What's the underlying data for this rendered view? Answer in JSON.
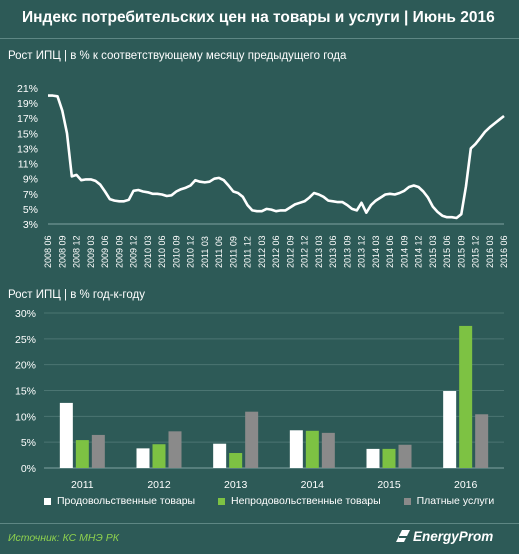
{
  "header": {
    "title": "Индекс потребительских цен на товары и услуги | Июнь 2016"
  },
  "colors": {
    "background": "#2d5a57",
    "line": "#ffffff",
    "food": "#ffffff",
    "nonfood": "#7dc243",
    "services": "#8a8a8a",
    "source": "#8fd24e"
  },
  "chart_data": [
    {
      "type": "line",
      "title": "Рост ИПЦ | в % к соответствующему месяцу предыдущего года",
      "y_ticks": [
        "21%",
        "19%",
        "17%",
        "15%",
        "13%",
        "11%",
        "9%",
        "7%",
        "5%",
        "3%"
      ],
      "ylim": [
        3,
        21
      ],
      "x_ticks": [
        "2008 06",
        "2008 09",
        "2008 12",
        "2009 03",
        "2009 06",
        "2009 09",
        "2009 12",
        "2010 03",
        "2010 06",
        "2010 09",
        "2010 12",
        "2011 03",
        "2011 06",
        "2011 09",
        "2011 12",
        "2012 03",
        "2012 06",
        "2012 09",
        "2012 12",
        "2013 03",
        "2013 06",
        "2013 09",
        "2013 12",
        "2014 03",
        "2014 06",
        "2014 09",
        "2014 12",
        "2015 03",
        "2015 06",
        "2015 09",
        "2015 12",
        "2016 03",
        "2016 06"
      ],
      "x": [
        "2008-06",
        "2008-07",
        "2008-08",
        "2008-09",
        "2008-10",
        "2008-11",
        "2008-12",
        "2009-01",
        "2009-02",
        "2009-03",
        "2009-04",
        "2009-05",
        "2009-06",
        "2009-07",
        "2009-08",
        "2009-09",
        "2009-10",
        "2009-11",
        "2009-12",
        "2010-01",
        "2010-02",
        "2010-03",
        "2010-04",
        "2010-05",
        "2010-06",
        "2010-07",
        "2010-08",
        "2010-09",
        "2010-10",
        "2010-11",
        "2010-12",
        "2011-01",
        "2011-02",
        "2011-03",
        "2011-04",
        "2011-05",
        "2011-06",
        "2011-07",
        "2011-08",
        "2011-09",
        "2011-10",
        "2011-11",
        "2011-12",
        "2012-01",
        "2012-02",
        "2012-03",
        "2012-04",
        "2012-05",
        "2012-06",
        "2012-07",
        "2012-08",
        "2012-09",
        "2012-10",
        "2012-11",
        "2012-12",
        "2013-01",
        "2013-02",
        "2013-03",
        "2013-04",
        "2013-05",
        "2013-06",
        "2013-07",
        "2013-08",
        "2013-09",
        "2013-10",
        "2013-11",
        "2013-12",
        "2014-01",
        "2014-02",
        "2014-03",
        "2014-04",
        "2014-05",
        "2014-06",
        "2014-07",
        "2014-08",
        "2014-09",
        "2014-10",
        "2014-11",
        "2014-12",
        "2015-01",
        "2015-02",
        "2015-03",
        "2015-04",
        "2015-05",
        "2015-06",
        "2015-07",
        "2015-08",
        "2015-09",
        "2015-10",
        "2015-11",
        "2015-12",
        "2016-01",
        "2016-02",
        "2016-03",
        "2016-04",
        "2016-05",
        "2016-06"
      ],
      "values": [
        20.0,
        20.0,
        19.9,
        18.0,
        15.0,
        9.3,
        9.5,
        8.8,
        8.9,
        8.9,
        8.7,
        8.2,
        7.3,
        6.3,
        6.1,
        6.0,
        6.0,
        6.2,
        7.4,
        7.5,
        7.3,
        7.2,
        7.0,
        7.0,
        6.9,
        6.7,
        6.8,
        7.3,
        7.6,
        7.8,
        8.1,
        8.8,
        8.6,
        8.5,
        8.6,
        9.0,
        9.1,
        8.8,
        8.1,
        7.3,
        7.1,
        6.6,
        5.5,
        4.8,
        4.7,
        4.7,
        5.0,
        4.9,
        4.7,
        4.8,
        4.8,
        5.2,
        5.6,
        5.8,
        6.0,
        6.5,
        7.1,
        6.9,
        6.6,
        6.1,
        6.0,
        5.9,
        5.9,
        5.5,
        5.0,
        4.8,
        5.8,
        4.5,
        5.5,
        6.1,
        6.5,
        6.9,
        7.0,
        6.9,
        7.1,
        7.4,
        7.9,
        8.1,
        7.9,
        7.3,
        6.5,
        5.3,
        4.6,
        4.1,
        3.9,
        3.9,
        3.8,
        4.3,
        8.0,
        13.0,
        13.6,
        14.4,
        15.2,
        15.8,
        16.3,
        16.8,
        17.3
      ]
    },
    {
      "type": "bar",
      "title": "Рост ИПЦ | в % год-к-году",
      "categories": [
        "2011",
        "2012",
        "2013",
        "2014",
        "2015",
        "2016"
      ],
      "y_ticks": [
        "30%",
        "25%",
        "20%",
        "15%",
        "10%",
        "5%",
        "0%"
      ],
      "ylim": [
        0,
        30
      ],
      "series": [
        {
          "name": "Продовольственные товары",
          "values": [
            12.6,
            3.8,
            4.7,
            7.3,
            3.7,
            14.9
          ]
        },
        {
          "name": "Непродовольственные товары",
          "values": [
            5.4,
            4.6,
            2.9,
            7.2,
            3.7,
            27.5
          ]
        },
        {
          "name": "Платные услуги",
          "values": [
            6.4,
            7.1,
            10.9,
            6.8,
            4.5,
            10.4
          ]
        }
      ]
    }
  ],
  "legend": [
    {
      "label": "Продовольственные товары"
    },
    {
      "label": "Непродовольственные товары"
    },
    {
      "label": "Платные услуги"
    }
  ],
  "footer": {
    "source": "Источник: КС МНЭ РК",
    "brand": "EnergyProm"
  }
}
